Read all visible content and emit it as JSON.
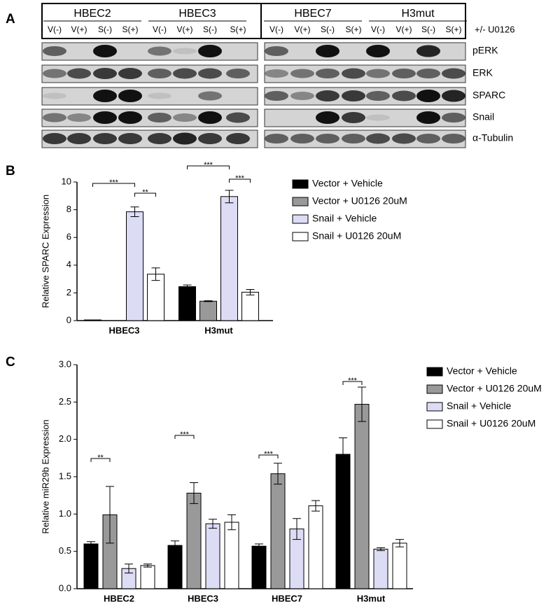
{
  "panels": [
    "A",
    "B",
    "C"
  ],
  "blot": {
    "groups": [
      "HBEC2",
      "HBEC3",
      "HBEC7",
      "H3mut"
    ],
    "lanes": [
      "V(-)",
      "V(+)",
      "S(-)",
      "S(+)"
    ],
    "treatment": "+/- U0126",
    "rows": [
      "pERK",
      "ERK",
      "SPARC",
      "Snail",
      "α-Tubulin"
    ]
  },
  "chart_data": [
    {
      "type": "bar",
      "ylabel": "Relative SPARC Expression",
      "categories": [
        "HBEC3",
        "H3mut"
      ],
      "ylim": [
        0,
        10
      ],
      "yticks": [
        0,
        2,
        4,
        6,
        8,
        10
      ],
      "series": [
        {
          "name": "Vector + Vehicle",
          "color": "#000000",
          "values": [
            0.05,
            2.45
          ],
          "errors": [
            0,
            0.12
          ]
        },
        {
          "name": "Vector + U0126 20uM",
          "color": "#999999",
          "values": [
            0,
            1.4
          ],
          "errors": [
            0,
            0.03
          ]
        },
        {
          "name": "Snail + Vehicle",
          "color": "#dcdcf5",
          "values": [
            7.85,
            8.95
          ],
          "errors": [
            0.35,
            0.45
          ]
        },
        {
          "name": "Snail + U0126 20uM",
          "color": "#ffffff",
          "values": [
            3.35,
            2.05
          ],
          "errors": [
            0.45,
            0.2
          ]
        }
      ],
      "annotations": [
        "***",
        "**",
        "***",
        "***"
      ]
    },
    {
      "type": "bar",
      "ylabel": "Relative miR29b Expression",
      "categories": [
        "HBEC2",
        "HBEC3",
        "HBEC7",
        "H3mut"
      ],
      "ylim": [
        0,
        3
      ],
      "yticks": [
        {
          "value": 0,
          "label": "0.0"
        },
        {
          "value": 0.5,
          "label": "0.5"
        },
        {
          "value": 1,
          "label": "1.0"
        },
        {
          "value": 1.5,
          "label": "1.5"
        },
        {
          "value": 2,
          "label": "2.0"
        },
        {
          "value": 2.5,
          "label": "2.5"
        },
        {
          "value": 3,
          "label": "3.0"
        }
      ],
      "series": [
        {
          "name": "Vector + Vehicle",
          "color": "#000000",
          "values": [
            0.6,
            0.58,
            0.57,
            1.8
          ],
          "errors": [
            0.03,
            0.06,
            0.03,
            0.22
          ]
        },
        {
          "name": "Vector + U0126 20uM",
          "color": "#999999",
          "values": [
            0.99,
            1.28,
            1.54,
            2.47
          ],
          "errors": [
            0.38,
            0.14,
            0.14,
            0.23
          ]
        },
        {
          "name": "Snail + Vehicle",
          "color": "#dcdcf5",
          "values": [
            0.27,
            0.87,
            0.8,
            0.53
          ],
          "errors": [
            0.06,
            0.06,
            0.14,
            0.02
          ]
        },
        {
          "name": "Snail + U0126 20uM",
          "color": "#ffffff",
          "values": [
            0.31,
            0.89,
            1.11,
            0.61
          ],
          "errors": [
            0.02,
            0.1,
            0.07,
            0.05
          ]
        }
      ],
      "annotations": [
        "**",
        "***",
        "***",
        "***"
      ]
    }
  ]
}
